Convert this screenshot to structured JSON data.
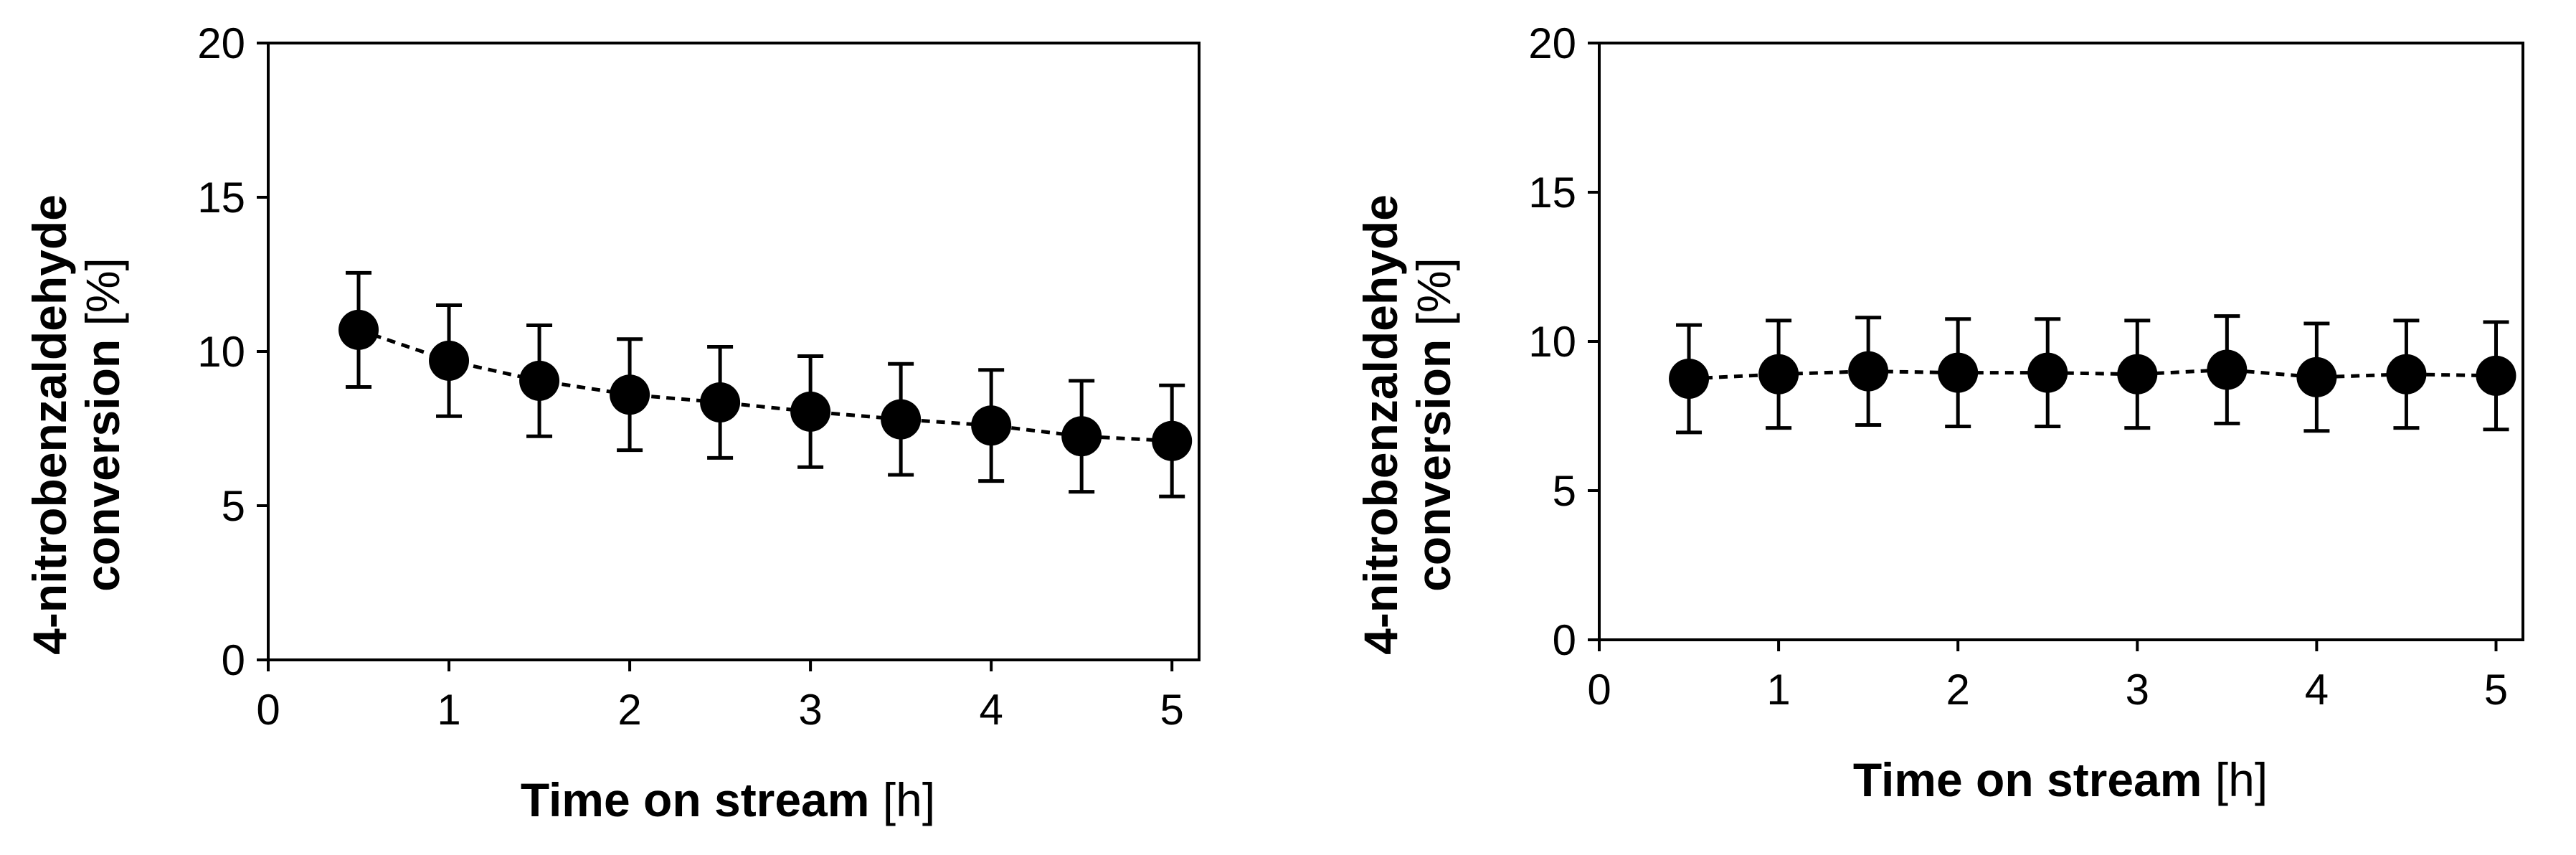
{
  "chart_data": [
    {
      "type": "scatter",
      "line_style": "dashed",
      "xlabel": {
        "bold": "Time on stream",
        "unit": " [h]"
      },
      "ylabel": {
        "line1": "4-nitrobenzaldehyde",
        "line2_bold": "conversion",
        "line2_unit": " [%]"
      },
      "xlim": [
        0,
        5.15
      ],
      "ylim": [
        0,
        20
      ],
      "xticks": [
        "0",
        "1",
        "2",
        "3",
        "4",
        "5"
      ],
      "yticks": [
        "0",
        "5",
        "10",
        "15",
        "20"
      ],
      "grid": false,
      "series": [
        {
          "x": [
            0.5,
            1.0,
            1.5,
            2.0,
            2.5,
            3.0,
            3.5,
            4.0,
            4.5,
            5.0
          ],
          "y": [
            10.7,
            9.7,
            9.05,
            8.6,
            8.35,
            8.05,
            7.8,
            7.6,
            7.25,
            7.1
          ],
          "error": [
            1.85,
            1.8,
            1.8,
            1.8,
            1.8,
            1.8,
            1.8,
            1.8,
            1.8,
            1.8
          ]
        }
      ]
    },
    {
      "type": "scatter",
      "line_style": "dashed",
      "xlabel": {
        "bold": "Time on stream",
        "unit": " [h]"
      },
      "ylabel": {
        "line1": "4-nitrobenzaldehyde",
        "line2_bold": "conversion",
        "line2_unit": " [%]"
      },
      "xlim": [
        0,
        5.15
      ],
      "ylim": [
        0,
        20
      ],
      "xticks": [
        "0",
        "1",
        "2",
        "3",
        "4",
        "5"
      ],
      "yticks": [
        "0",
        "5",
        "10",
        "15",
        "20"
      ],
      "grid": false,
      "series": [
        {
          "x": [
            0.5,
            1.0,
            1.5,
            2.0,
            2.5,
            3.0,
            3.5,
            4.0,
            4.5,
            5.0
          ],
          "y": [
            8.75,
            8.9,
            9.0,
            8.95,
            8.95,
            8.9,
            9.05,
            8.8,
            8.9,
            8.85
          ],
          "error": [
            1.8,
            1.8,
            1.8,
            1.8,
            1.8,
            1.8,
            1.8,
            1.8,
            1.8,
            1.8
          ]
        }
      ]
    }
  ]
}
